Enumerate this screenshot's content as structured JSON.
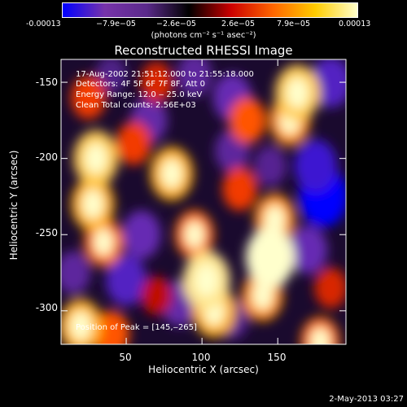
{
  "colorbar": {
    "tick_labels": [
      "-0.00013",
      "−7.9e−05",
      "−2.6e−05",
      "2.6e−05",
      "7.9e−05",
      "0.00013"
    ],
    "unit_label": "(photons cm⁻² s⁻¹ asec⁻²)"
  },
  "chart_data": {
    "type": "heatmap",
    "title": "Reconstructed RHESSI Image",
    "xlabel": "Heliocentric X (arcsec)",
    "ylabel": "Heliocentric Y (arcsec)",
    "xlim": [
      7,
      195
    ],
    "ylim": [
      -322,
      -135
    ],
    "xticks": [
      50,
      100,
      150
    ],
    "yticks": [
      -150,
      -200,
      -250,
      -300
    ],
    "value_range": [
      -0.00013,
      0.00013
    ],
    "colormap": [
      "#0000ff",
      "#7733aa",
      "#5a2a8a",
      "#000000",
      "#cc0000",
      "#ff6600",
      "#ffcc00",
      "#ffffcc"
    ],
    "peak": [
      145,
      -265
    ],
    "sources": [
      {
        "x": 145,
        "y": -265,
        "value": 0.00013
      },
      {
        "x": 140,
        "y": -290,
        "value": 9e-05
      },
      {
        "x": 148,
        "y": -240,
        "value": 9e-05
      },
      {
        "x": 103,
        "y": -280,
        "value": 0.00012
      },
      {
        "x": 108,
        "y": -300,
        "value": 0.0001
      },
      {
        "x": 30,
        "y": -200,
        "value": 0.00011
      },
      {
        "x": 28,
        "y": -230,
        "value": 0.0001
      },
      {
        "x": 35,
        "y": -255,
        "value": 8e-05
      },
      {
        "x": 25,
        "y": -160,
        "value": 6e-05
      },
      {
        "x": 163,
        "y": -157,
        "value": 0.00011
      },
      {
        "x": 158,
        "y": -175,
        "value": 9e-05
      },
      {
        "x": 80,
        "y": -210,
        "value": 0.0001
      },
      {
        "x": 95,
        "y": -250,
        "value": 8e-05
      },
      {
        "x": 55,
        "y": -190,
        "value": 6e-05
      },
      {
        "x": 70,
        "y": -150,
        "value": 5e-05
      },
      {
        "x": 125,
        "y": -220,
        "value": 6e-05
      },
      {
        "x": 130,
        "y": -175,
        "value": 7e-05
      },
      {
        "x": 20,
        "y": -310,
        "value": 0.0001
      },
      {
        "x": 40,
        "y": -315,
        "value": 7e-05
      },
      {
        "x": 178,
        "y": -320,
        "value": 8e-05
      },
      {
        "x": 185,
        "y": -285,
        "value": 5e-05
      },
      {
        "x": 70,
        "y": -290,
        "value": 4e-05
      },
      {
        "x": 60,
        "y": -250,
        "value": -8e-05
      },
      {
        "x": 65,
        "y": -175,
        "value": -7e-05
      },
      {
        "x": 120,
        "y": -160,
        "value": -8e-05
      },
      {
        "x": 180,
        "y": -225,
        "value": -0.00013
      },
      {
        "x": 175,
        "y": -205,
        "value": -0.0001
      },
      {
        "x": 170,
        "y": -260,
        "value": -8e-05
      },
      {
        "x": 120,
        "y": -195,
        "value": -6e-05
      },
      {
        "x": 85,
        "y": -295,
        "value": -7e-05
      },
      {
        "x": 50,
        "y": -280,
        "value": -9e-05
      },
      {
        "x": 145,
        "y": -205,
        "value": -5e-05
      },
      {
        "x": 185,
        "y": -150,
        "value": -9e-05
      },
      {
        "x": 15,
        "y": -275,
        "value": -6e-05
      },
      {
        "x": 120,
        "y": -305,
        "value": -5e-05
      },
      {
        "x": 40,
        "y": -145,
        "value": -4e-05
      },
      {
        "x": 95,
        "y": -145,
        "value": -6e-05
      }
    ]
  },
  "annotations": {
    "time": "17‑Aug‑2002 21:51:12.000 to 21:55:18.000",
    "detectors": "Detectors: 4F 5F 6F 7F 8F, Att 0",
    "energy": "Energy Range: 12.0 ‒ 25.0 keV",
    "clean": "Clean     Total counts: 2.56E+03",
    "peak_label": "Position of Peak = [145,‒265]"
  },
  "footer": {
    "date": "2‑May‑2013 03:27"
  }
}
